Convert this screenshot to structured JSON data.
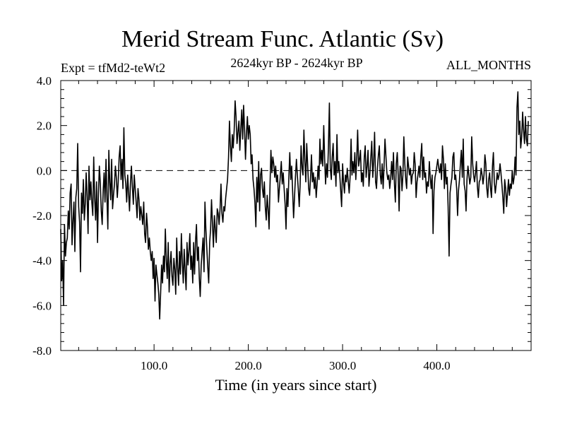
{
  "chart_data": {
    "type": "line",
    "title": "Merid Stream Func. Atlantic (Sv)",
    "subtitle": "2624kyr BP - 2624kyr BP",
    "experiment": "Expt = tfMd2-teWt2",
    "period": "ALL_MONTHS",
    "xlabel": "Time (in years since start)",
    "ylabel": "",
    "xlim": [
      1,
      500
    ],
    "ylim": [
      -8,
      4
    ],
    "x_ticks": [
      100,
      200,
      300,
      400
    ],
    "x_tick_labels": [
      "100.0",
      "200.0",
      "300.0",
      "400.0"
    ],
    "y_ticks": [
      4,
      2,
      0,
      -2,
      -4,
      -6,
      -8
    ],
    "y_tick_labels": [
      "4.0",
      "2.0",
      "0.0",
      "-2.0",
      "-4.0",
      "-6.0",
      "-8.0"
    ],
    "zero_line": true,
    "series": [
      {
        "name": "Merid Stream Func. Atlantic",
        "x_start": 1,
        "x_step": 1,
        "values": [
          -2.6,
          -4.9,
          -4.0,
          -6.0,
          -2.4,
          -3.8,
          -3.2,
          -3.0,
          -1.8,
          -2.6,
          -1.0,
          -0.6,
          -3.3,
          -2.2,
          -1.4,
          -3.6,
          -1.2,
          -0.8,
          1.2,
          -1.6,
          -2.3,
          -4.5,
          -1.0,
          -1.9,
          -0.4,
          -2.2,
          -1.5,
          -0.1,
          -1.2,
          -2.8,
          0.2,
          -1.3,
          -0.5,
          -1.4,
          -2.0,
          0.6,
          -1.2,
          -2.2,
          -0.5,
          -3.2,
          -1.0,
          0.2,
          -0.6,
          -1.8,
          -2.4,
          -0.9,
          -0.1,
          -1.4,
          0.5,
          -1.2,
          -2.6,
          0.9,
          -0.5,
          -1.3,
          0.5,
          -1.7,
          -1.1,
          -0.6,
          0.2,
          -0.3,
          -1.2,
          -0.5,
          0.6,
          1.1,
          -0.4,
          0.5,
          -0.8,
          1.9,
          -0.2,
          -0.6,
          -1.4,
          -0.2,
          -1.0,
          -1.8,
          -0.5,
          0.2,
          -0.7,
          -1.5,
          -0.2,
          -0.8,
          -1.4,
          -2.1,
          -0.8,
          -1.3,
          -2.2,
          -1.6,
          -2.0,
          -2.4,
          -1.4,
          -2.8,
          -3.2,
          -1.9,
          -2.5,
          -3.5,
          -3.0,
          -3.6,
          -4.0,
          -3.6,
          -4.8,
          -3.9,
          -5.8,
          -4.2,
          -4.6,
          -5.0,
          -5.5,
          -6.6,
          -5.4,
          -4.2,
          -5.0,
          -3.8,
          -4.5,
          -2.6,
          -4.0,
          -4.8,
          -3.2,
          -5.4,
          -4.2,
          -3.6,
          -4.7,
          -5.1,
          -3.9,
          -4.4,
          -5.5,
          -3.0,
          -4.3,
          -5.1,
          -3.6,
          -4.6,
          -2.8,
          -4.1,
          -5.0,
          -3.5,
          -4.5,
          -5.3,
          -3.2,
          -4.2,
          -3.6,
          -2.8,
          -4.4,
          -3.8,
          -5.0,
          -3.2,
          -4.6,
          -3.1,
          -2.4,
          -4.0,
          -3.4,
          -4.8,
          -5.6,
          -4.2,
          -3.6,
          -3.0,
          -4.5,
          -1.4,
          -2.6,
          -3.5,
          -4.3,
          -5.0,
          -3.2,
          -2.6,
          -1.3,
          -2.4,
          -3.4,
          -2.0,
          -2.6,
          -3.2,
          -1.7,
          -1.9,
          -2.4,
          -1.7,
          -0.6,
          -1.9,
          -2.3,
          -1.6,
          -1.8,
          -1.2,
          -0.8,
          -0.4,
          0.6,
          2.2,
          1.1,
          0.4,
          1.6,
          1.0,
          1.8,
          3.1,
          2.4,
          1.2,
          1.7,
          2.2,
          0.9,
          1.8,
          2.7,
          1.4,
          2.9,
          1.8,
          0.5,
          1.6,
          2.4,
          1.4,
          2.0,
          1.6,
          0.3,
          0.7,
          -0.4,
          -0.8,
          -1.4,
          -2.5,
          -0.3,
          -1.4,
          0.4,
          -1.8,
          -0.2,
          0.1,
          -0.8,
          -1.2,
          -0.5,
          -1.6,
          -2.2,
          -1.1,
          -1.7,
          -2.6,
          -0.7,
          0.9,
          -0.1,
          0.6,
          0.3,
          -0.3,
          0.2,
          -0.5,
          -0.2,
          -1.4,
          -0.8,
          -0.2,
          0.4,
          -0.6,
          -0.1,
          -0.8,
          -1.5,
          -2.6,
          -0.8,
          -1.6,
          -0.3,
          0.8,
          -0.4,
          0.2,
          -0.9,
          -2.1,
          -1.2,
          -0.3,
          0.5,
          -0.2,
          -0.8,
          -1.6,
          -0.6,
          1.1,
          0.1,
          -0.2,
          1.8,
          0.4,
          -0.5,
          1.2,
          0.2,
          -0.8,
          -1.1,
          -0.3,
          0.7,
          -0.5,
          -0.1,
          -0.8,
          -0.3,
          -1.2,
          -0.6,
          0.2,
          -0.4,
          1.4,
          0.3,
          0.9,
          0.2,
          2.0,
          0.5,
          -0.6,
          0.3,
          -0.3,
          1.0,
          3.0,
          0.1,
          -0.4,
          0.6,
          1.2,
          -0.2,
          0.4,
          -0.7,
          1.6,
          -0.1,
          0.4,
          -0.2,
          -0.9,
          -1.6,
          0.3,
          -0.5,
          -1.0,
          -0.2,
          -0.5,
          0.1,
          -0.5,
          -1.0,
          -0.3,
          1.4,
          -0.2,
          0.4,
          -0.1,
          0.8,
          -0.4,
          0.5,
          1.8,
          0.2,
          0.5,
          0.9,
          -0.5,
          -0.1,
          -0.7,
          0.6,
          1.1,
          -0.3,
          0.2,
          0.9,
          -0.7,
          -0.1,
          0.6,
          1.3,
          -0.3,
          0.4,
          1.7,
          -0.5,
          -0.8,
          0.1,
          0.7,
          1.1,
          -0.2,
          -0.6,
          0.3,
          -0.8,
          0.2,
          1.4,
          0.6,
          -0.1,
          -0.4,
          -0.2,
          -0.8,
          -0.4,
          0.4,
          -0.4,
          0.8,
          -0.6,
          -1.4,
          0.3,
          0.8,
          -0.2,
          -1.8,
          0.2,
          0.1,
          -0.9,
          -0.2,
          1.5,
          0.3,
          -0.4,
          -0.8,
          0.6,
          0.2,
          -0.2,
          0.1,
          -0.6,
          -0.2,
          -0.1,
          0.8,
          0.3,
          -1.2,
          -0.5,
          -0.2,
          0.2,
          -0.3,
          0.6,
          1.2,
          -0.4,
          0.6,
          -0.3,
          -0.1,
          -1.0,
          -0.5,
          -0.7,
          0.4,
          -0.3,
          -0.8,
          -0.2,
          -2.8,
          -0.9,
          -0.3,
          -0.1,
          0.2,
          0.5,
          0.1,
          -0.1,
          0.3,
          -0.4,
          1.1,
          0.5,
          -0.8,
          0.3,
          -0.6,
          -0.3,
          -1.6,
          -3.8,
          -1.0,
          -0.6,
          -0.3,
          0.6,
          0.8,
          -0.4,
          -0.2,
          -0.8,
          -2.0,
          -0.9,
          -0.4,
          0.3,
          0.9,
          -0.3,
          1.4,
          -0.6,
          -0.9,
          -1.8,
          -0.4,
          0.2,
          -0.2,
          -0.6,
          -0.3,
          1.5,
          0.3,
          -0.2,
          -0.5,
          -0.1,
          0.4,
          -0.7,
          -1.2,
          -0.5,
          -0.4,
          0.1,
          -0.2,
          -0.6,
          -0.2,
          0.7,
          0.3,
          -0.8,
          -1.2,
          -0.4,
          -0.1,
          -0.8,
          -1.2,
          0.2,
          0.8,
          -0.5,
          -1.0,
          -0.6,
          -0.1,
          -0.4,
          -0.2,
          0.3,
          -0.1,
          -0.6,
          -1.2,
          -1.9,
          -0.4,
          -0.8,
          -1.6,
          -1.0,
          -0.4,
          -1.1,
          -0.6,
          -0.8,
          0.0,
          -0.6,
          -0.3,
          0.6,
          -0.2,
          2.8,
          3.5,
          1.6,
          2.2,
          1.0,
          1.5,
          2.6,
          1.8,
          1.2,
          2.4,
          1.4,
          1.1,
          2.2
        ]
      }
    ]
  }
}
